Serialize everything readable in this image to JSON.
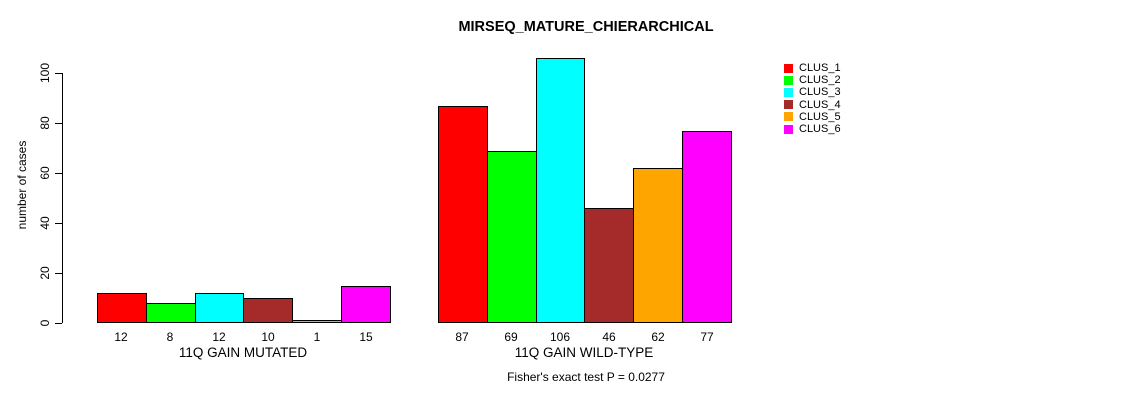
{
  "chart_data": {
    "type": "bar",
    "title": "MIRSEQ_MATURE_CHIERARCHICAL",
    "ylabel": "number of cases",
    "annotation": "Fisher's exact test P = 0.0277",
    "yticks": [
      0,
      20,
      40,
      60,
      80,
      100
    ],
    "ylim": [
      0,
      106
    ],
    "grid": false,
    "legend_position": "top-right",
    "series": [
      {
        "name": "CLUS_1",
        "color": "#FF0000"
      },
      {
        "name": "CLUS_2",
        "color": "#00FF00"
      },
      {
        "name": "CLUS_3",
        "color": "#00FFFF"
      },
      {
        "name": "CLUS_4",
        "color": "#A52A2A"
      },
      {
        "name": "CLUS_5",
        "color": "#FFA500"
      },
      {
        "name": "CLUS_6",
        "color": "#FF00FF"
      }
    ],
    "groups": [
      {
        "label": "11Q GAIN MUTATED",
        "values": [
          12,
          8,
          12,
          10,
          1,
          15
        ]
      },
      {
        "label": "11Q GAIN WILD-TYPE",
        "values": [
          87,
          69,
          106,
          46,
          62,
          77
        ]
      }
    ]
  }
}
